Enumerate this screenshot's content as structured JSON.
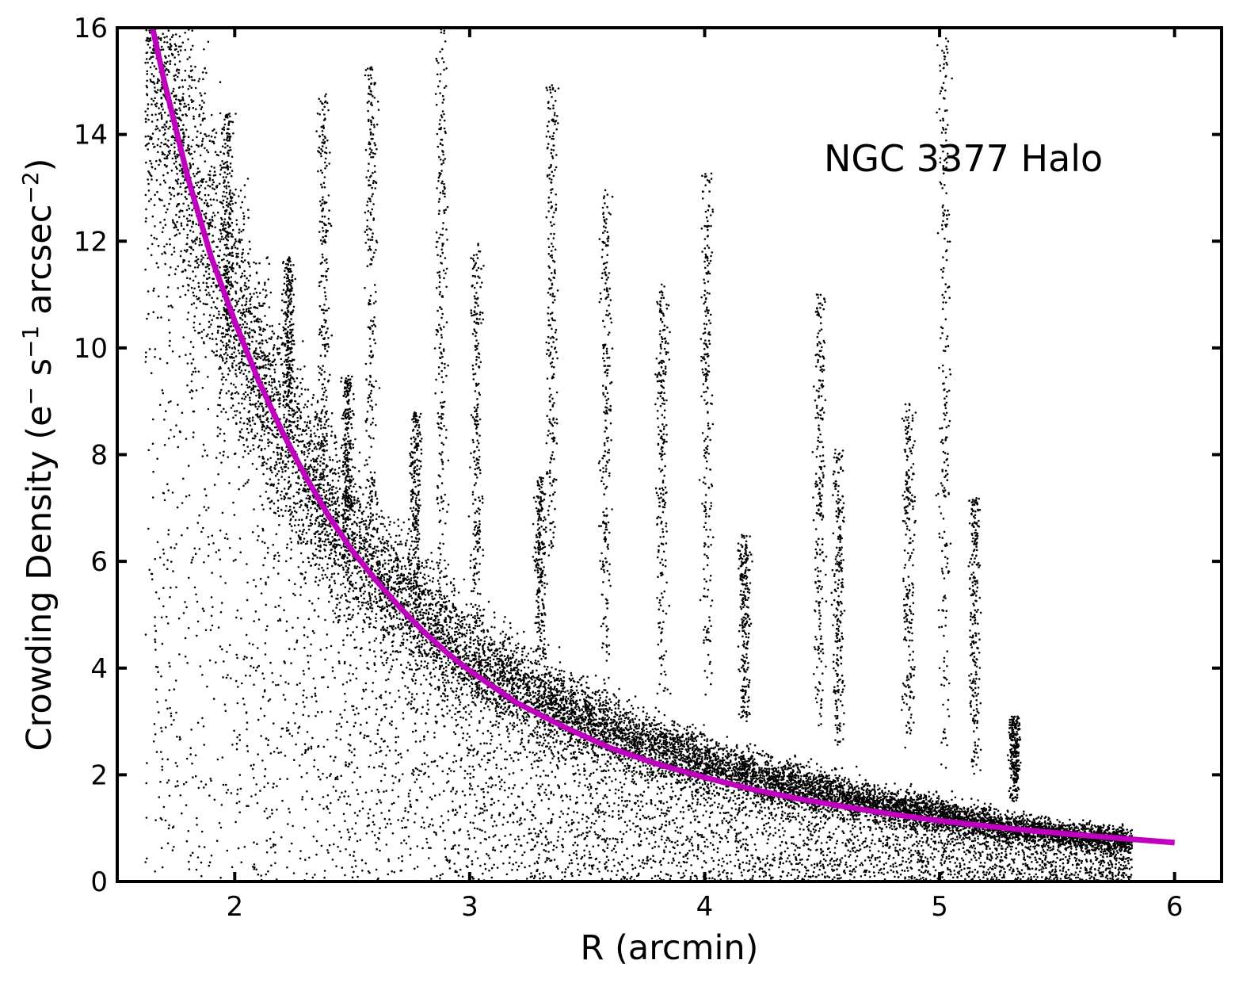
{
  "chart_data": {
    "type": "scatter",
    "title": "",
    "annotation": "NGC 3377 Halo",
    "xlabel": "R (arcmin)",
    "ylabel": {
      "base": "Crowding Density (e",
      "sup1": "−",
      "mid1": " s",
      "sup2": "−1",
      "mid2": " arcsec",
      "sup3": "−2",
      "end": ")"
    },
    "xlim": [
      1.5,
      6.2
    ],
    "ylim": [
      0,
      16
    ],
    "x_ticks": [
      2,
      3,
      4,
      5,
      6
    ],
    "x_tick_labels": [
      "2",
      "3",
      "4",
      "5",
      "6"
    ],
    "y_ticks": [
      0,
      2,
      4,
      6,
      8,
      10,
      12,
      14,
      16
    ],
    "y_tick_labels": [
      "0",
      "2",
      "4",
      "6",
      "8",
      "10",
      "12",
      "14",
      "16"
    ],
    "grid": false,
    "series": [
      {
        "kind": "scatter",
        "color": "#000000",
        "main_band": {
          "x_range": [
            1.62,
            5.82
          ],
          "curve_x": [
            1.65,
            1.7,
            1.8,
            1.9,
            2.0,
            2.2,
            2.4,
            2.6,
            2.8,
            3.0,
            3.2,
            3.4,
            3.6,
            3.8,
            4.0,
            4.2,
            4.4,
            4.6,
            4.8,
            5.0,
            5.2,
            5.4,
            5.6,
            5.8
          ],
          "curve_y": [
            16.2,
            15.2,
            13.5,
            12.0,
            10.7,
            8.6,
            7.0,
            5.85,
            4.95,
            4.25,
            3.7,
            3.25,
            2.85,
            2.55,
            2.25,
            2.0,
            1.8,
            1.6,
            1.42,
            1.25,
            1.1,
            0.97,
            0.86,
            0.78
          ]
        },
        "spikes": [
          {
            "x": 1.97,
            "y": [
              9.5,
              14.4
            ]
          },
          {
            "x": 2.23,
            "y": [
              8.5,
              11.7
            ]
          },
          {
            "x": 2.38,
            "y": [
              7.0,
              14.8
            ]
          },
          {
            "x": 2.48,
            "y": [
              6.5,
              9.5
            ]
          },
          {
            "x": 2.58,
            "y": [
              6.0,
              15.3
            ]
          },
          {
            "x": 2.77,
            "y": [
              5.0,
              8.8
            ]
          },
          {
            "x": 2.88,
            "y": [
              5.0,
              16.0
            ]
          },
          {
            "x": 3.03,
            "y": [
              4.5,
              12.0
            ]
          },
          {
            "x": 3.3,
            "y": [
              4.0,
              7.6
            ]
          },
          {
            "x": 3.35,
            "y": [
              6.0,
              15.0
            ]
          },
          {
            "x": 3.58,
            "y": [
              4.0,
              13.0
            ]
          },
          {
            "x": 3.82,
            "y": [
              3.5,
              11.2
            ]
          },
          {
            "x": 4.01,
            "y": [
              3.5,
              13.3
            ]
          },
          {
            "x": 4.17,
            "y": [
              3.0,
              6.5
            ]
          },
          {
            "x": 4.49,
            "y": [
              2.8,
              11.0
            ]
          },
          {
            "x": 4.57,
            "y": [
              2.5,
              8.1
            ]
          },
          {
            "x": 4.87,
            "y": [
              2.5,
              9.0
            ]
          },
          {
            "x": 5.02,
            "y": [
              2.0,
              15.8
            ]
          },
          {
            "x": 5.15,
            "y": [
              2.0,
              7.2
            ]
          },
          {
            "x": 5.32,
            "y": [
              1.5,
              3.1
            ]
          }
        ]
      },
      {
        "kind": "line",
        "name": "",
        "color": "#bf00bf",
        "x": [
          1.65,
          1.7,
          1.8,
          1.9,
          2.0,
          2.1,
          2.2,
          2.3,
          2.4,
          2.5,
          2.6,
          2.7,
          2.8,
          2.9,
          3.0,
          3.2,
          3.4,
          3.6,
          3.8,
          4.0,
          4.2,
          4.4,
          4.6,
          4.8,
          5.0,
          5.2,
          5.4,
          5.6,
          5.8,
          6.0
        ],
        "y": [
          16.0,
          15.0,
          13.2,
          11.7,
          10.5,
          9.4,
          8.45,
          7.6,
          6.85,
          6.2,
          5.65,
          5.15,
          4.7,
          4.3,
          3.95,
          3.35,
          2.9,
          2.5,
          2.2,
          1.95,
          1.73,
          1.55,
          1.4,
          1.26,
          1.14,
          1.04,
          0.95,
          0.87,
          0.8,
          0.73
        ]
      }
    ]
  }
}
